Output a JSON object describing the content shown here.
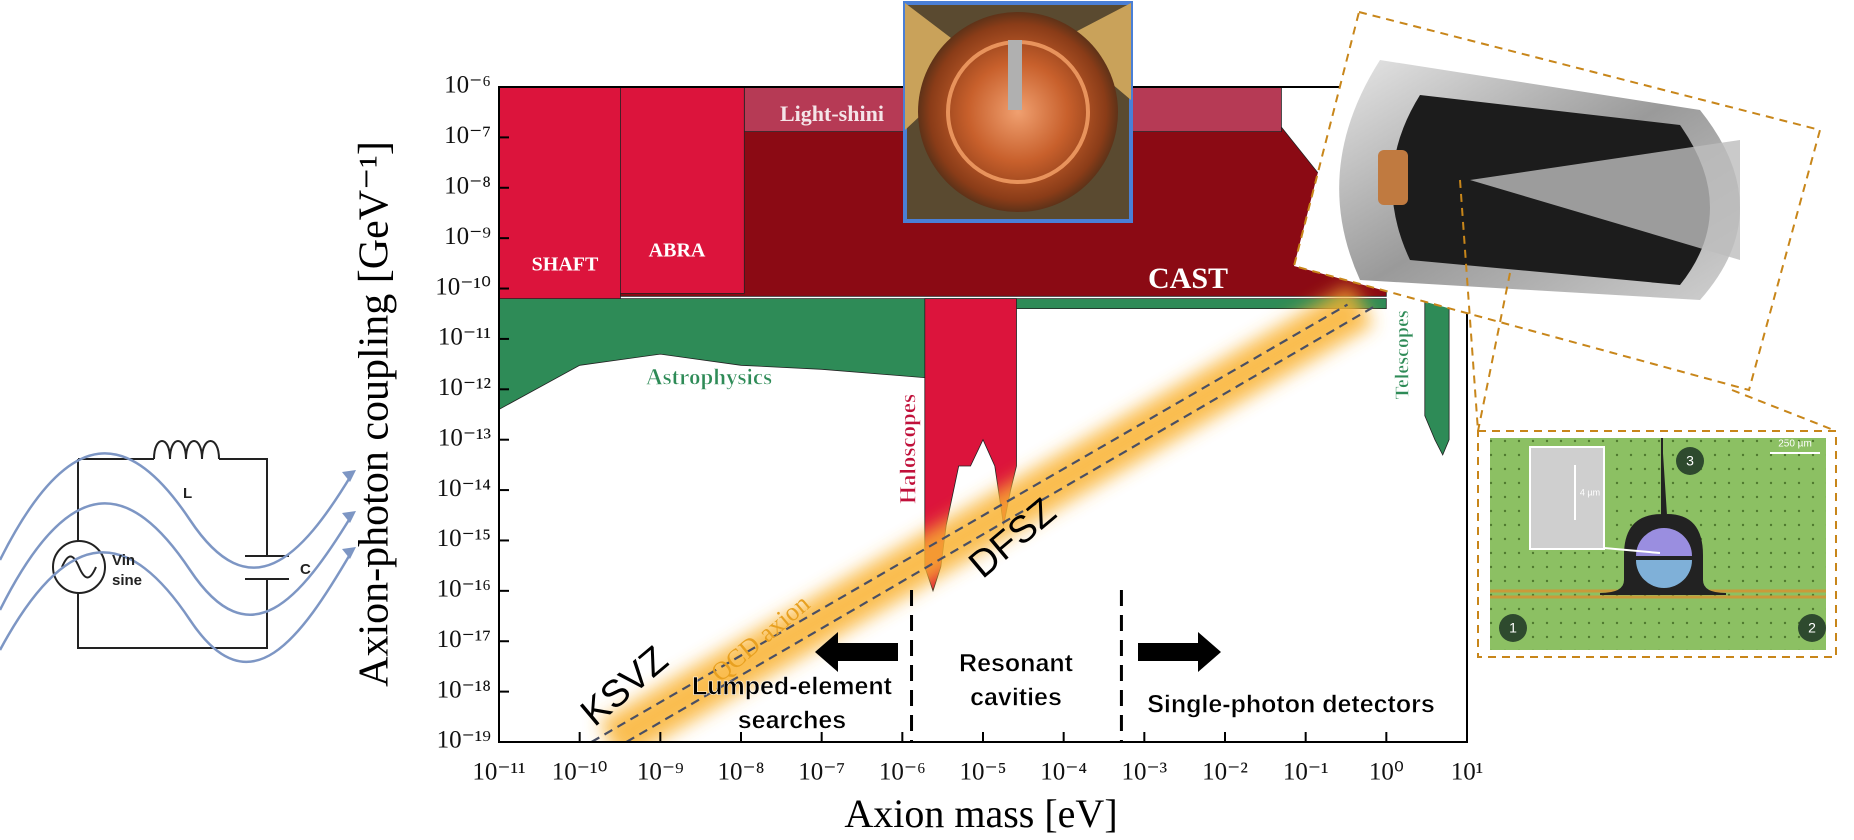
{
  "chart_data": {
    "type": "exclusion",
    "x_label": "Axion mass [eV]",
    "y_label": "Axion-photon coupling [GeV⁻¹]",
    "xscale": "log",
    "yscale": "log",
    "xlim": [
      1e-11,
      10
    ],
    "ylim": [
      1e-19,
      1e-06
    ],
    "xticks": [
      {
        "value": 1e-11,
        "label": "10⁻¹¹"
      },
      {
        "value": 1e-10,
        "label": "10⁻¹⁰"
      },
      {
        "value": 1e-09,
        "label": "10⁻⁹"
      },
      {
        "value": 1e-08,
        "label": "10⁻⁸"
      },
      {
        "value": 1e-07,
        "label": "10⁻⁷"
      },
      {
        "value": 1e-06,
        "label": "10⁻⁶"
      },
      {
        "value": 1e-05,
        "label": "10⁻⁵"
      },
      {
        "value": 0.0001,
        "label": "10⁻⁴"
      },
      {
        "value": 0.001,
        "label": "10⁻³"
      },
      {
        "value": 0.01,
        "label": "10⁻²"
      },
      {
        "value": 0.1,
        "label": "10⁻¹"
      },
      {
        "value": 1,
        "label": "10⁰"
      },
      {
        "value": 10,
        "label": "10¹"
      }
    ],
    "yticks": [
      {
        "value": 1e-19,
        "label": "10⁻¹⁹"
      },
      {
        "value": 1e-18,
        "label": "10⁻¹⁸"
      },
      {
        "value": 1e-17,
        "label": "10⁻¹⁷"
      },
      {
        "value": 1e-16,
        "label": "10⁻¹⁶"
      },
      {
        "value": 1e-15,
        "label": "10⁻¹⁵"
      },
      {
        "value": 1e-14,
        "label": "10⁻¹⁴"
      },
      {
        "value": 1e-13,
        "label": "10⁻¹³"
      },
      {
        "value": 1e-12,
        "label": "10⁻¹²"
      },
      {
        "value": 1e-11,
        "label": "10⁻¹¹"
      },
      {
        "value": 1e-10,
        "label": "10⁻¹⁰"
      },
      {
        "value": 1e-09,
        "label": "10⁻⁹"
      },
      {
        "value": 1e-08,
        "label": "10⁻⁸"
      },
      {
        "value": 1e-07,
        "label": "10⁻⁷"
      },
      {
        "value": 1e-06,
        "label": "10⁻⁶"
      }
    ],
    "regions": [
      {
        "name": "CAST",
        "color": "#8b0a14",
        "x": [
          1e-11,
          0.02,
          0.2,
          0.5,
          1,
          1,
          1e-11
        ],
        "y": [
          1e-06,
          1e-06,
          1e-08,
          1e-09,
          3e-10,
          7e-11,
          7e-11
        ]
      },
      {
        "name": "Light-shini",
        "color": "#b63a55",
        "x": [
          1.1e-08,
          0.05,
          0.05,
          1.1e-08
        ],
        "y": [
          1e-06,
          1e-06,
          1.3e-07,
          1.3e-07
        ]
      },
      {
        "name": "SHAFT",
        "color": "#dc143c",
        "x": [
          1e-11,
          3.2e-10,
          3.2e-10,
          1e-11
        ],
        "y": [
          1e-06,
          1e-06,
          6e-11,
          6e-11
        ]
      },
      {
        "name": "ABRA",
        "color": "#dc143c",
        "x": [
          3.2e-10,
          1.1e-08,
          1.1e-08,
          3.2e-10
        ],
        "y": [
          1e-06,
          1e-06,
          8e-11,
          8e-11
        ]
      },
      {
        "name": "Astrophysics",
        "color": "#2e8b57",
        "x": [
          1e-11,
          1,
          1,
          5e-06,
          3e-06,
          1e-07,
          1e-08,
          1e-09,
          1e-10,
          1e-11
        ],
        "y": [
          6.3e-11,
          6.3e-11,
          4e-11,
          4e-11,
          1.6e-12,
          2.5e-12,
          3e-12,
          5e-12,
          3e-12,
          4e-13
        ]
      },
      {
        "name": "Haloscopes",
        "color": "#dc143c",
        "x": [
          1.9e-06,
          1.9e-06,
          2.4e-06,
          3e-06,
          3.5e-06,
          5e-06,
          7e-06,
          1e-05,
          1.4e-05,
          1.8e-05,
          2.2e-05,
          2.6e-05,
          2.6e-05
        ],
        "y": [
          6.3e-11,
          3e-16,
          1e-16,
          3e-16,
          2e-15,
          3e-14,
          3e-14,
          1e-13,
          3e-14,
          2e-15,
          1e-14,
          3e-14,
          6.3e-11
        ]
      },
      {
        "name": "Telescopes",
        "color": "#2e8b57",
        "x": [
          3,
          3,
          4,
          5,
          6,
          6
        ],
        "y": [
          6.3e-11,
          3e-13,
          1e-13,
          5e-14,
          1e-13,
          6.3e-11
        ]
      }
    ],
    "band": {
      "name": "QCD axion",
      "color": "#f9b233",
      "x": [
        2.4e-10,
        0.5
      ],
      "y": [
        1e-19,
        4.8e-11
      ]
    },
    "lines": [
      {
        "name": "KSVZ",
        "color": "#4a4f63",
        "x": [
          1.4e-10,
          0.33
        ],
        "y": [
          1e-19,
          4.8e-11
        ]
      },
      {
        "name": "DFSZ",
        "color": "#4a4f63",
        "x": [
          3.8e-10,
          0.78
        ],
        "y": [
          1e-19,
          4.8e-11
        ]
      }
    ],
    "dividers": [
      1.3e-06,
      0.00052
    ],
    "annotations": [
      {
        "lines": [
          "Lumped-element",
          "searches"
        ]
      },
      {
        "lines": [
          "Resonant",
          "cavities"
        ]
      },
      {
        "lines": [
          "Single-photon detectors"
        ]
      }
    ]
  },
  "circuit": {
    "inductor": "L",
    "capacitor": "C",
    "source": [
      "Vin",
      "sine"
    ]
  },
  "inset": {
    "ports": [
      "1",
      "2",
      "3"
    ],
    "scale_bar": "250 µm",
    "zoom_scale": "4 µm"
  }
}
